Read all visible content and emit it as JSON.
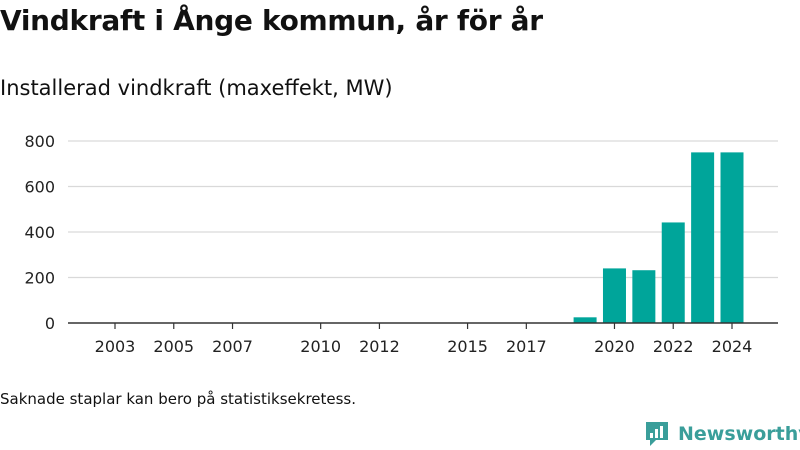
{
  "title": "Vindkraft i Ånge kommun, år för år",
  "subtitle": "Installerad vindkraft (maxeffekt, MW)",
  "note": "Saknade staplar kan bero på statistiksekretess.",
  "brand": {
    "name": "Newsworthy",
    "logo_icon": "newsworthy-chart-logo-icon",
    "color": "#3a9e9a"
  },
  "chart_data": {
    "type": "bar",
    "title": "",
    "xlabel": "",
    "ylabel": "",
    "categories": [
      2003,
      2004,
      2005,
      2006,
      2007,
      2008,
      2009,
      2010,
      2011,
      2012,
      2013,
      2014,
      2015,
      2016,
      2017,
      2018,
      2019,
      2020,
      2021,
      2022,
      2023,
      2024
    ],
    "values": [
      0,
      0,
      0,
      0,
      0,
      null,
      null,
      0,
      0,
      0,
      null,
      null,
      0,
      0,
      0,
      0,
      25,
      240,
      232,
      442,
      750,
      750
    ],
    "x_tick_labels": [
      "2003",
      "2005",
      "2007",
      "2010",
      "2012",
      "2015",
      "2017",
      "2020",
      "2022",
      "2024"
    ],
    "y_ticks": [
      0,
      200,
      400,
      600,
      800
    ],
    "ylim": [
      0,
      800
    ],
    "grid": true,
    "bar_color": "#00a59a"
  }
}
